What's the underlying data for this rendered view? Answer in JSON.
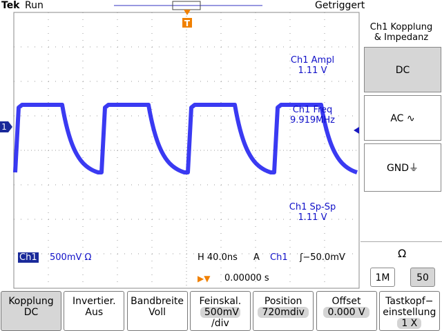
{
  "header": {
    "brand": "Tek",
    "status": "Run",
    "trigger_state": "Getriggert"
  },
  "markers": {
    "channel": "1",
    "trigger": "T"
  },
  "side_menu": {
    "title": [
      "Ch1 Kopplung",
      "& Impedanz"
    ],
    "options": [
      "DC",
      "AC ∿",
      "GND⏚"
    ],
    "impedance_label": "Ω",
    "impedance_options": [
      "1M",
      "50"
    ]
  },
  "measurements": [
    {
      "label": "Ch1 Ampl",
      "value": "1.11 V"
    },
    {
      "label": "Ch1 Freq",
      "value": "9.919MHz"
    },
    {
      "label": "Ch1 Sp-Sp",
      "value": "1.11 V"
    }
  ],
  "status": {
    "channel": "Ch1",
    "scale": "500mV Ω",
    "horizontal": "H 40.0ns",
    "mode": "A",
    "trigger_source": "Ch1",
    "trigger_level": "ʃ−50.0mV",
    "trigger_time": "0.00000 s"
  },
  "bottom_menu": [
    {
      "label": [
        "Kopplung"
      ],
      "value": [
        "DC"
      ]
    },
    {
      "label": [
        "Invertier."
      ],
      "value": [
        "Aus"
      ]
    },
    {
      "label": [
        "Bandbreite"
      ],
      "value": [
        "Voll"
      ]
    },
    {
      "label": [
        "Feinskal."
      ],
      "value": [
        "500mV",
        "/div"
      ]
    },
    {
      "label": [
        "Position"
      ],
      "value": [
        "720mdiv"
      ]
    },
    {
      "label": [
        "Offset"
      ],
      "value": [
        "0.000 V"
      ]
    },
    {
      "label": [
        "Tastkopf−",
        "einstellung"
      ],
      "value": [
        "1 X"
      ]
    }
  ]
}
